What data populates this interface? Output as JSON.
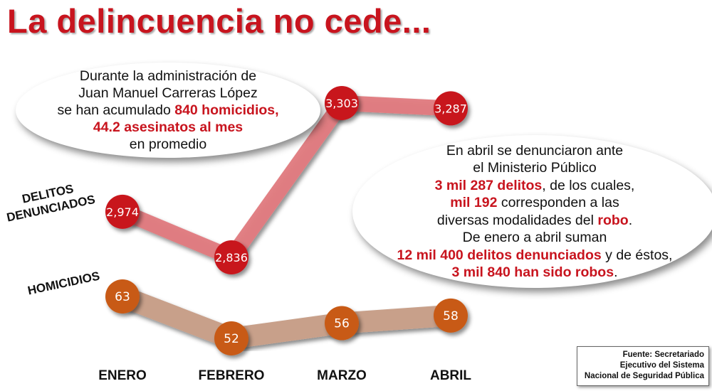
{
  "title": "La delincuencia no cede...",
  "bubble_left": {
    "line1": "Durante la administración de",
    "line2": "Juan Manuel Carreras López",
    "line3_pre": "se han acumulado ",
    "line3_hl": "840 homicidios,",
    "line4_hl": "44.2 asesinatos al mes",
    "line5": "en promedio"
  },
  "bubble_right": {
    "line1": "En abril se denunciaron ante",
    "line2": "el Ministerio Público",
    "line3_hl": "3 mil 287 delitos",
    "line3_post": ", de los cuales,",
    "line4_hl": "mil 192",
    "line4_post": " corresponden a las",
    "line5_pre": "diversas modalidades del ",
    "line5_hl": "robo",
    "line5_post": ".",
    "line6": "De enero a abril suman",
    "line7_hl": "12 mil 400 delitos denunciados",
    "line7_post": " y de éstos,",
    "line8_hl": "3 mil 840 han sido robos",
    "line8_post": "."
  },
  "source": {
    "line1": "Fuente: Secretariado",
    "line2": "Ejecutivo del Sistema",
    "line3": "Nacional de Seguridad Pública"
  },
  "colors": {
    "title": "#c8141e",
    "highlight": "#c8141e",
    "delitos_marker": "#c8141e",
    "delitos_line": "#e07a7e",
    "homicidios_marker": "#c85a14",
    "homicidios_line": "#c8a08a"
  },
  "chart_data": {
    "type": "line",
    "categories": [
      "ENERO",
      "FEBRERO",
      "MARZO",
      "ABRIL"
    ],
    "series": [
      {
        "name": "DELITOS DENUNCIADOS",
        "name_line1": "DELITOS",
        "name_line2": "DENUNCIADOS",
        "values": [
          2974,
          2836,
          3303,
          3287
        ],
        "labels": [
          "2,974",
          "2,836",
          "3,303",
          "3,287"
        ]
      },
      {
        "name": "HOMICIDIOS",
        "values": [
          63,
          52,
          56,
          58
        ],
        "labels": [
          "63",
          "52",
          "56",
          "58"
        ]
      }
    ]
  }
}
